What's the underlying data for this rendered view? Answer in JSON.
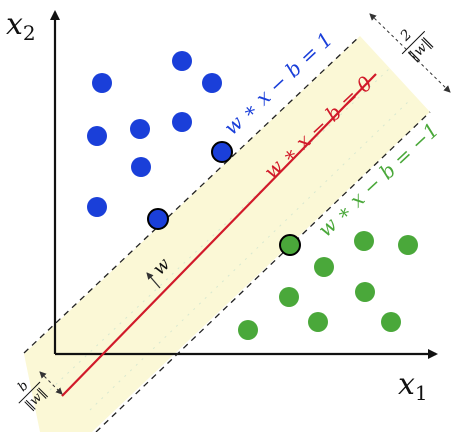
{
  "axes": {
    "x_label_main": "x",
    "x_label_sub": "1",
    "y_label_main": "x",
    "y_label_sub": "2"
  },
  "lines": {
    "upper": "w ∗ x − b = 1",
    "center": "w ∗ x − b = 0",
    "lower": "w ∗ x − b = −1"
  },
  "annotations": {
    "normal_vector": "w",
    "margin_numerator": "2",
    "margin_denominator": "‖w‖",
    "offset_numerator": "b",
    "offset_denominator": "‖w‖"
  },
  "colors": {
    "blue": "#1a3fd9",
    "green": "#4aa83a",
    "red": "#d11a2a",
    "margin_band": "#fbf8d6",
    "axis": "#111111"
  }
}
